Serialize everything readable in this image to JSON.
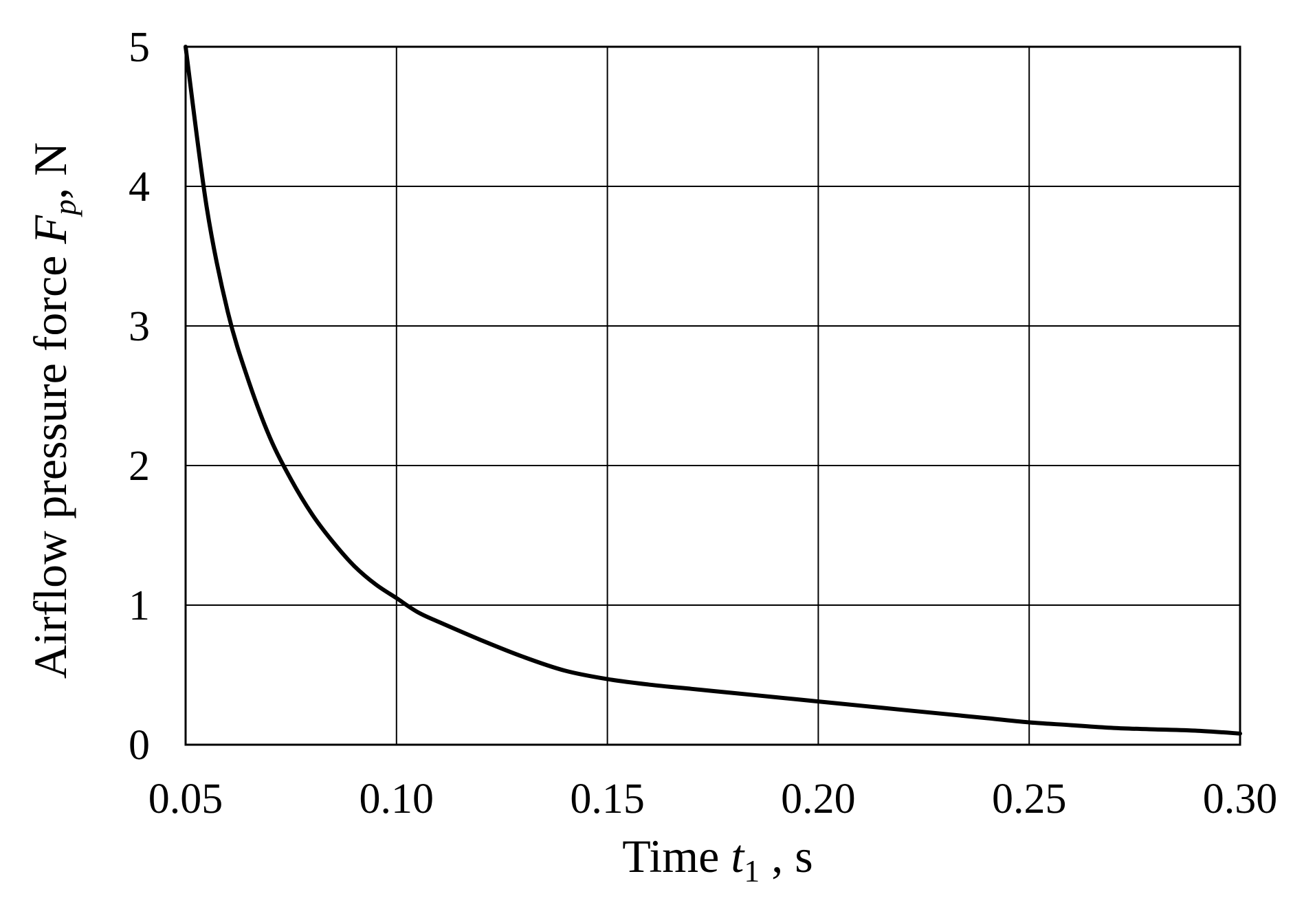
{
  "chart_data": {
    "type": "line",
    "title": "",
    "xlabel": {
      "prefix": "Time ",
      "var": "t",
      "sub": "1",
      "suffix": " , s"
    },
    "ylabel": {
      "prefix": "Airflow pressure force  ",
      "var": "F",
      "sub": "p",
      "suffix": ", N"
    },
    "xlim": [
      0.05,
      0.3
    ],
    "ylim": [
      0,
      5
    ],
    "xticks": [
      0.05,
      0.1,
      0.15,
      0.2,
      0.25,
      0.3
    ],
    "xtick_labels": [
      "0.05",
      "0.10",
      "0.15",
      "0.20",
      "0.25",
      "0.30"
    ],
    "yticks": [
      0,
      1,
      2,
      3,
      4,
      5
    ],
    "ytick_labels": [
      "0",
      "1",
      "2",
      "3",
      "4",
      "5"
    ],
    "grid": true,
    "series": [
      {
        "color": "#000000",
        "x": [
          0.05,
          0.055,
          0.06,
          0.065,
          0.07,
          0.075,
          0.08,
          0.085,
          0.09,
          0.095,
          0.1,
          0.105,
          0.11,
          0.12,
          0.13,
          0.14,
          0.15,
          0.16,
          0.17,
          0.18,
          0.19,
          0.2,
          0.21,
          0.22,
          0.23,
          0.24,
          0.25,
          0.26,
          0.27,
          0.28,
          0.29,
          0.3
        ],
        "y": [
          5.0,
          3.85,
          3.1,
          2.6,
          2.2,
          1.9,
          1.65,
          1.45,
          1.28,
          1.15,
          1.05,
          0.95,
          0.88,
          0.75,
          0.63,
          0.53,
          0.47,
          0.43,
          0.4,
          0.37,
          0.34,
          0.31,
          0.28,
          0.25,
          0.22,
          0.19,
          0.16,
          0.14,
          0.12,
          0.11,
          0.1,
          0.08
        ]
      }
    ]
  }
}
